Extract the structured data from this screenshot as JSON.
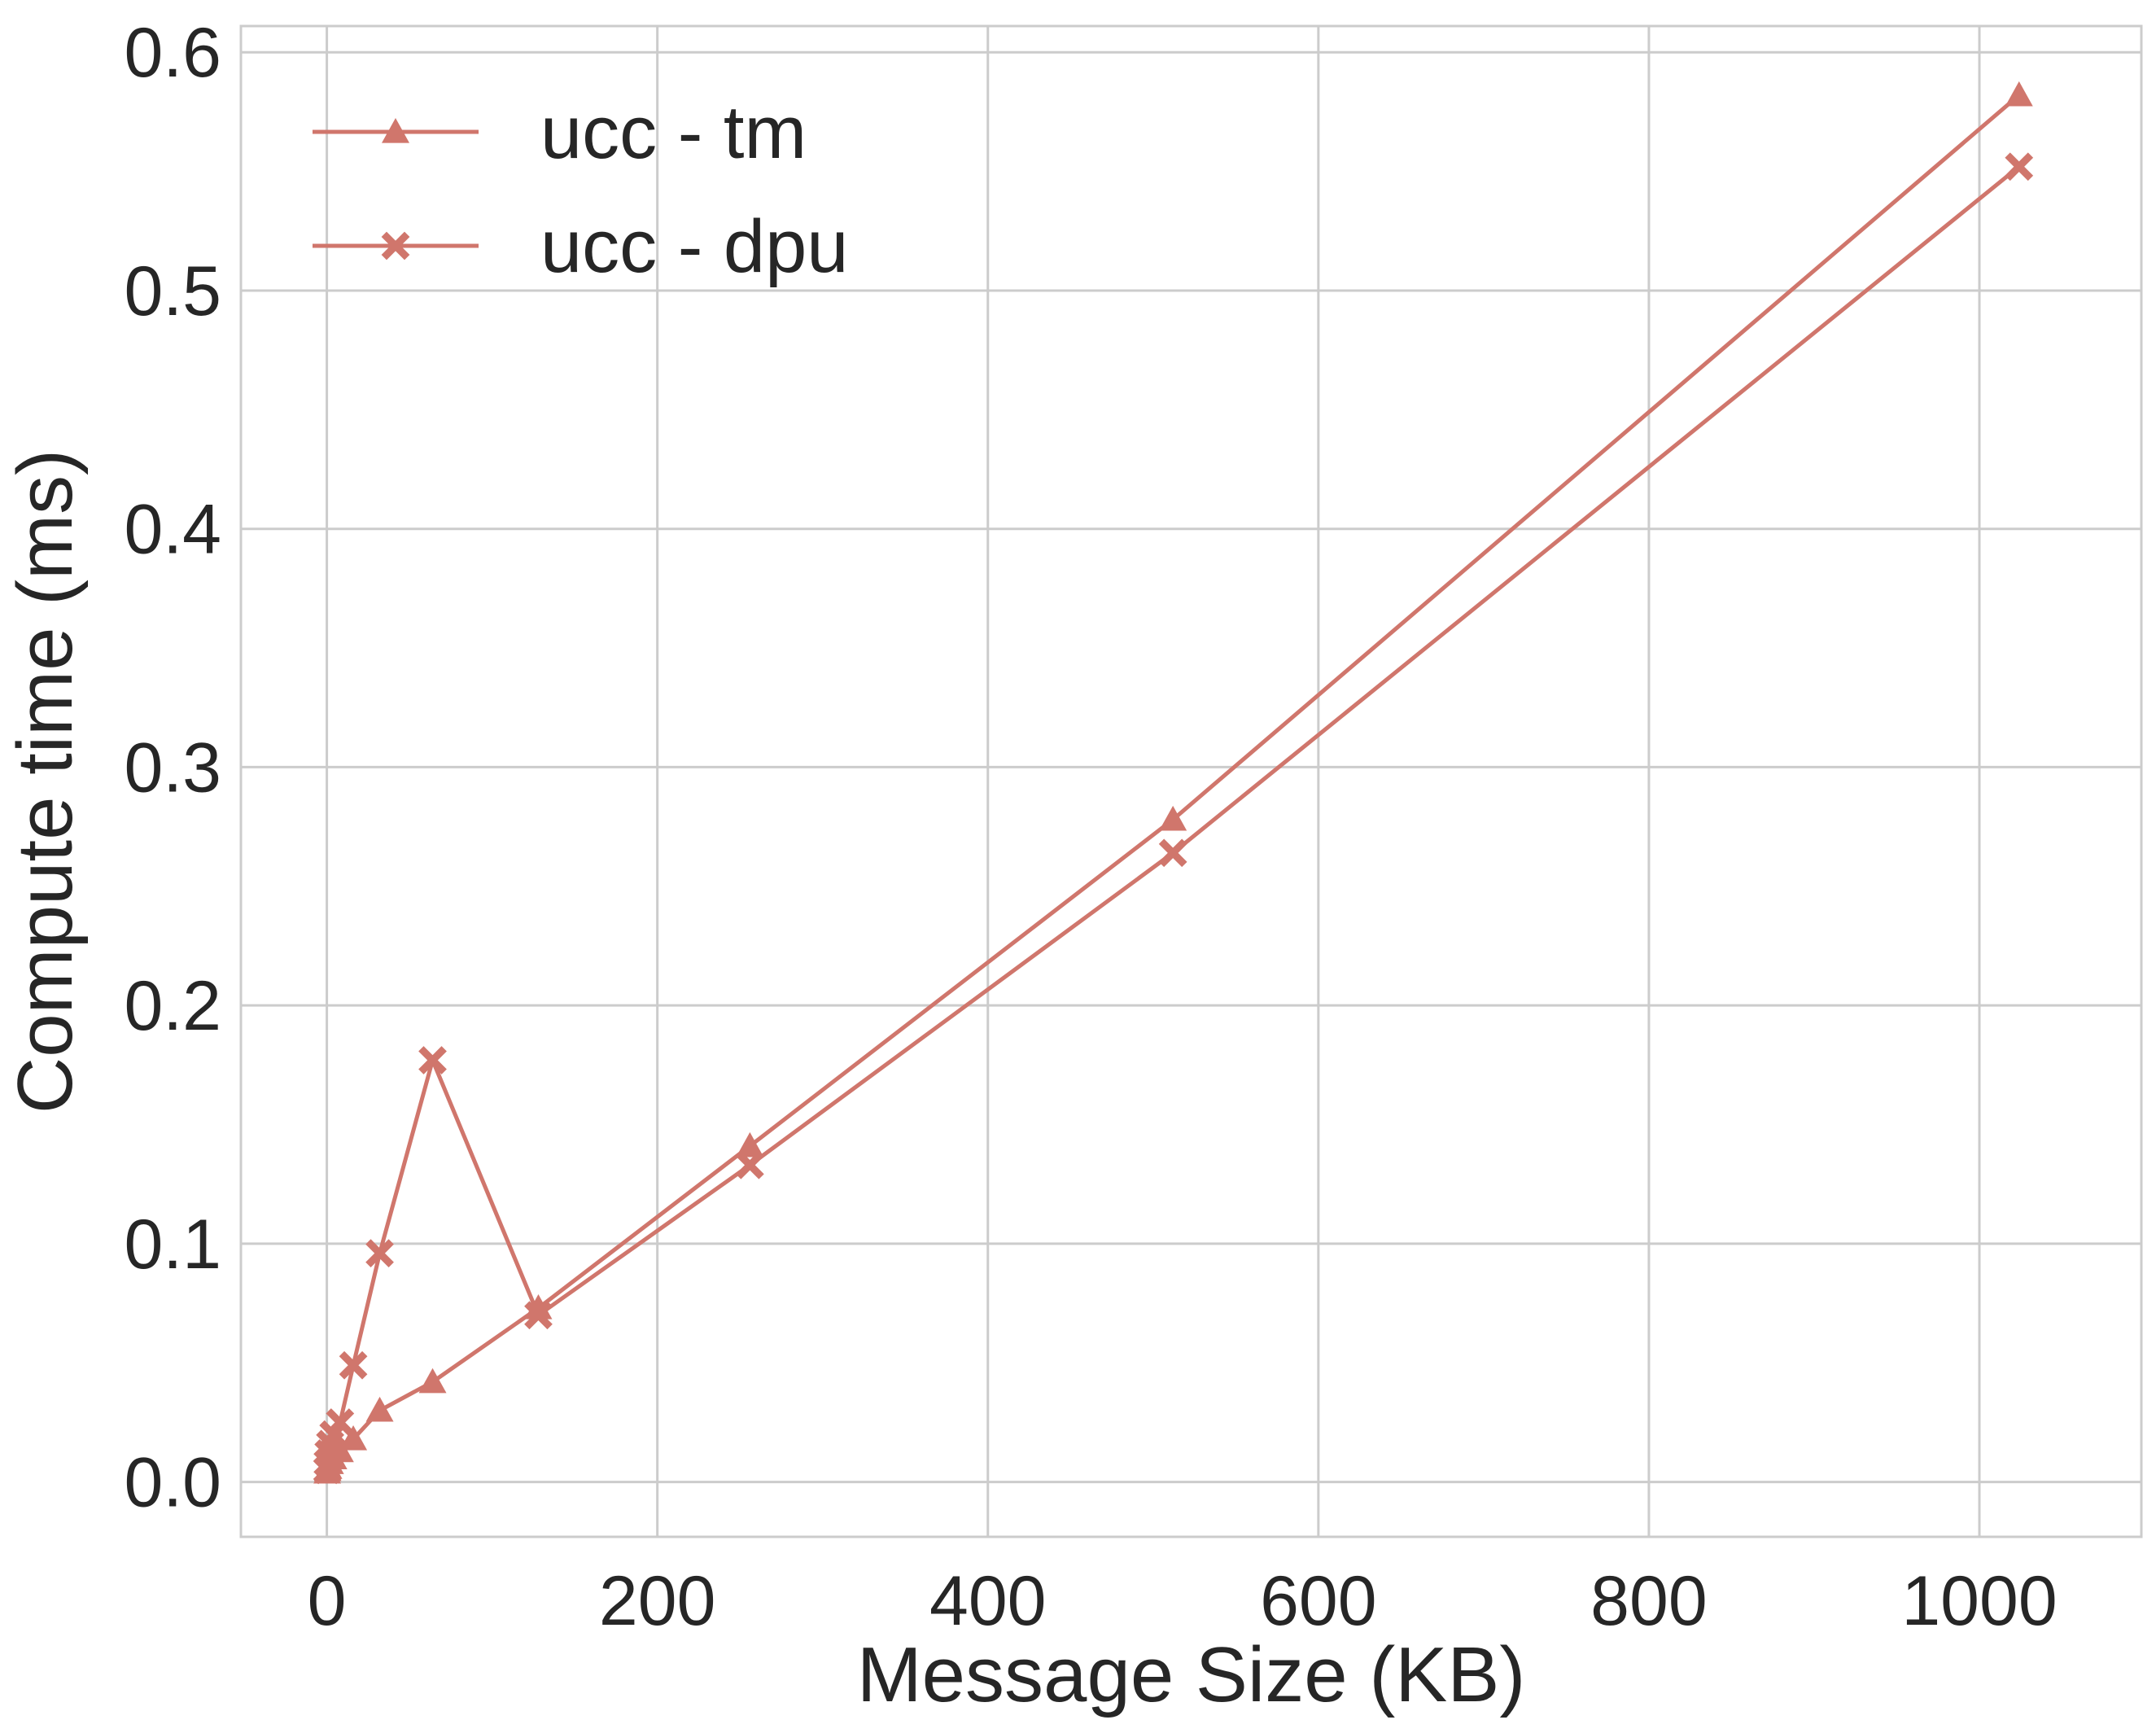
{
  "chart_data": {
    "type": "line",
    "title": "",
    "xlabel": "Message Size (KB)",
    "ylabel": "Compute time (ms)",
    "xlim": [
      -52,
      1098
    ],
    "ylim": [
      -0.023,
      0.611
    ],
    "xticks": [
      0,
      200,
      400,
      600,
      800,
      1000
    ],
    "yticks": [
      0.0,
      0.1,
      0.2,
      0.3,
      0.4,
      0.5,
      0.6
    ],
    "xtick_labels": [
      "0",
      "200",
      "400",
      "600",
      "800",
      "1000"
    ],
    "ytick_labels": [
      "0.0",
      "0.1",
      "0.2",
      "0.3",
      "0.4",
      "0.5",
      "0.6"
    ],
    "grid": true,
    "legend_position": "top-left",
    "color": "#d0766c",
    "series": [
      {
        "name": "ucc - tm",
        "marker": "triangle",
        "x": [
          0.25,
          0.5,
          1,
          2,
          4,
          8,
          16,
          32,
          64,
          128,
          256,
          512,
          1024
        ],
        "y": [
          0.004,
          0.005,
          0.006,
          0.008,
          0.01,
          0.013,
          0.018,
          0.03,
          0.042,
          0.073,
          0.141,
          0.278,
          0.582
        ]
      },
      {
        "name": "ucc - dpu",
        "marker": "x",
        "x": [
          0.25,
          0.5,
          1,
          2,
          4,
          8,
          16,
          32,
          64,
          128,
          256,
          512,
          1024
        ],
        "y": [
          0.005,
          0.008,
          0.012,
          0.016,
          0.02,
          0.025,
          0.049,
          0.096,
          0.177,
          0.07,
          0.133,
          0.264,
          0.552
        ]
      }
    ]
  }
}
